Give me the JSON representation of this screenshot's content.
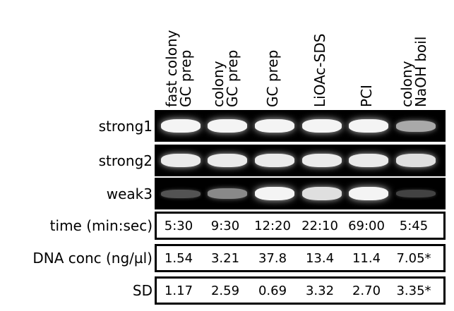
{
  "columns": [
    {
      "label_lines": [
        "fast colony",
        "GC prep"
      ]
    },
    {
      "label_lines": [
        "colony",
        "GC prep"
      ]
    },
    {
      "label_lines": [
        "GC prep"
      ]
    },
    {
      "label_lines": [
        "LiOAc-SDS"
      ]
    },
    {
      "label_lines": [
        "PCI"
      ]
    },
    {
      "label_lines": [
        "colony",
        "NaOH boil"
      ]
    }
  ],
  "gel_rows": [
    {
      "label": "strong1",
      "band_intensity": [
        0.95,
        0.95,
        0.95,
        0.95,
        0.95,
        0.6
      ]
    },
    {
      "label": "strong2",
      "band_intensity": [
        0.9,
        0.9,
        0.9,
        0.9,
        0.9,
        0.85
      ]
    },
    {
      "label": "weak3",
      "band_intensity": [
        0.2,
        0.45,
        0.95,
        0.85,
        0.95,
        0.12
      ]
    }
  ],
  "data_rows": [
    {
      "label": "time (min:sec)",
      "values": [
        "5:30",
        "9:30",
        "12:20",
        "22:10",
        "69:00",
        "5:45"
      ]
    },
    {
      "label": "DNA conc (ng/µl)",
      "values": [
        "1.54",
        "3.21",
        "37.8",
        "13.4",
        "11.4",
        "7.05*"
      ]
    },
    {
      "label": "SD",
      "values": [
        "1.17",
        "2.59",
        "0.69",
        "3.32",
        "2.70",
        "3.35*"
      ]
    }
  ]
}
